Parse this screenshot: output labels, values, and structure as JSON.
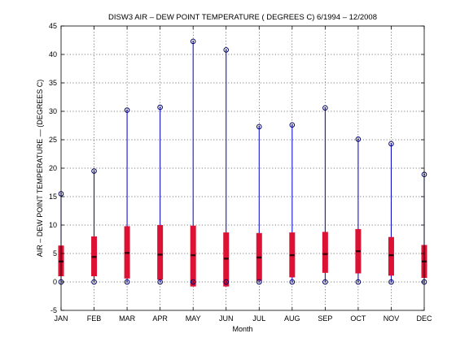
{
  "chart_data": {
    "type": "box",
    "title": "DISW3  AIR – DEW POINT TEMPERATURE ( DEGREES C) 6/1994 – 12/2008",
    "xlabel": "Month",
    "ylabel": "AIR – DEW POINT TEMPERATURE  —  (DEGREES C)",
    "categories": [
      "JAN",
      "FEB",
      "MAR",
      "APR",
      "MAY",
      "JUN",
      "JUL",
      "AUG",
      "SEP",
      "OCT",
      "NOV",
      "DEC"
    ],
    "ylim": [
      -5,
      45
    ],
    "yticks": [
      -5,
      0,
      5,
      10,
      15,
      20,
      25,
      30,
      35,
      40,
      45
    ],
    "grid": true,
    "max": [
      15.5,
      19.5,
      30.2,
      30.7,
      42.3,
      40.8,
      27.3,
      27.6,
      30.6,
      25.1,
      24.3,
      18.9
    ],
    "q3": [
      6.4,
      8.0,
      9.8,
      10.0,
      9.9,
      8.7,
      8.6,
      8.7,
      8.8,
      9.3,
      7.9,
      6.5
    ],
    "median": [
      3.6,
      4.4,
      5.1,
      4.8,
      4.7,
      4.1,
      4.3,
      4.7,
      4.9,
      5.4,
      4.7,
      3.6
    ],
    "q1": [
      1.0,
      1.0,
      0.6,
      0.4,
      -0.8,
      -0.8,
      0.2,
      0.8,
      1.6,
      1.5,
      1.1,
      0.7
    ],
    "min": [
      0,
      0,
      0,
      0,
      0,
      0,
      0,
      0,
      0,
      0,
      0,
      0
    ],
    "colors": {
      "whisker": "#0000cc",
      "box": "#dd1133",
      "median": "#000000",
      "marker": "#000066"
    }
  }
}
